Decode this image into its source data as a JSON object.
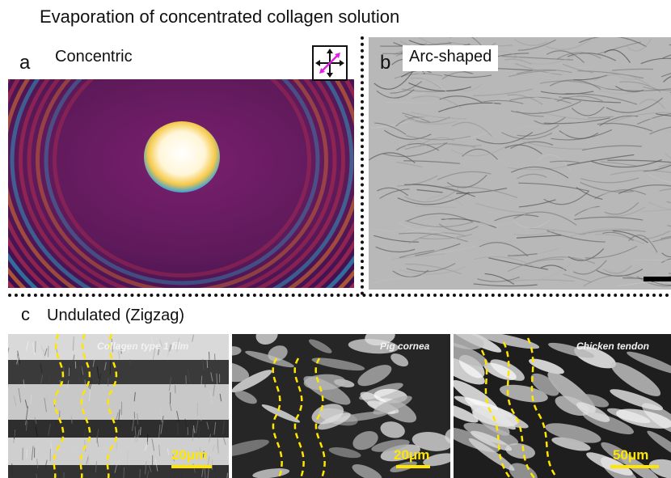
{
  "figure": {
    "title": "Evaporation of concentrated collagen solution"
  },
  "panels": {
    "a": {
      "letter": "a",
      "label": "Concentric"
    },
    "b": {
      "letter": "b",
      "label": "Arc-shaped"
    },
    "c": {
      "letter": "c",
      "label": "Undulated (Zigzag)",
      "subpanels": [
        {
          "label": "Collagen type 1 film",
          "scale": "20μm"
        },
        {
          "label": "Pig cornea",
          "scale": "20μm"
        },
        {
          "label": "Chicken tendon",
          "scale": "50μm"
        }
      ]
    }
  },
  "colors": {
    "background": "#ffffff",
    "polarized_base": "#6a1a5e",
    "fringe_red": "#c8304a",
    "fringe_blue": "#2aa6c8",
    "fringe_orange": "#e87a28",
    "guide_lines": "#ffe600",
    "scalebar": "#ffe600",
    "polarizer_arrow": "#e020e0"
  },
  "icons": {
    "polarizer": "crossed-polarizer-icon"
  }
}
